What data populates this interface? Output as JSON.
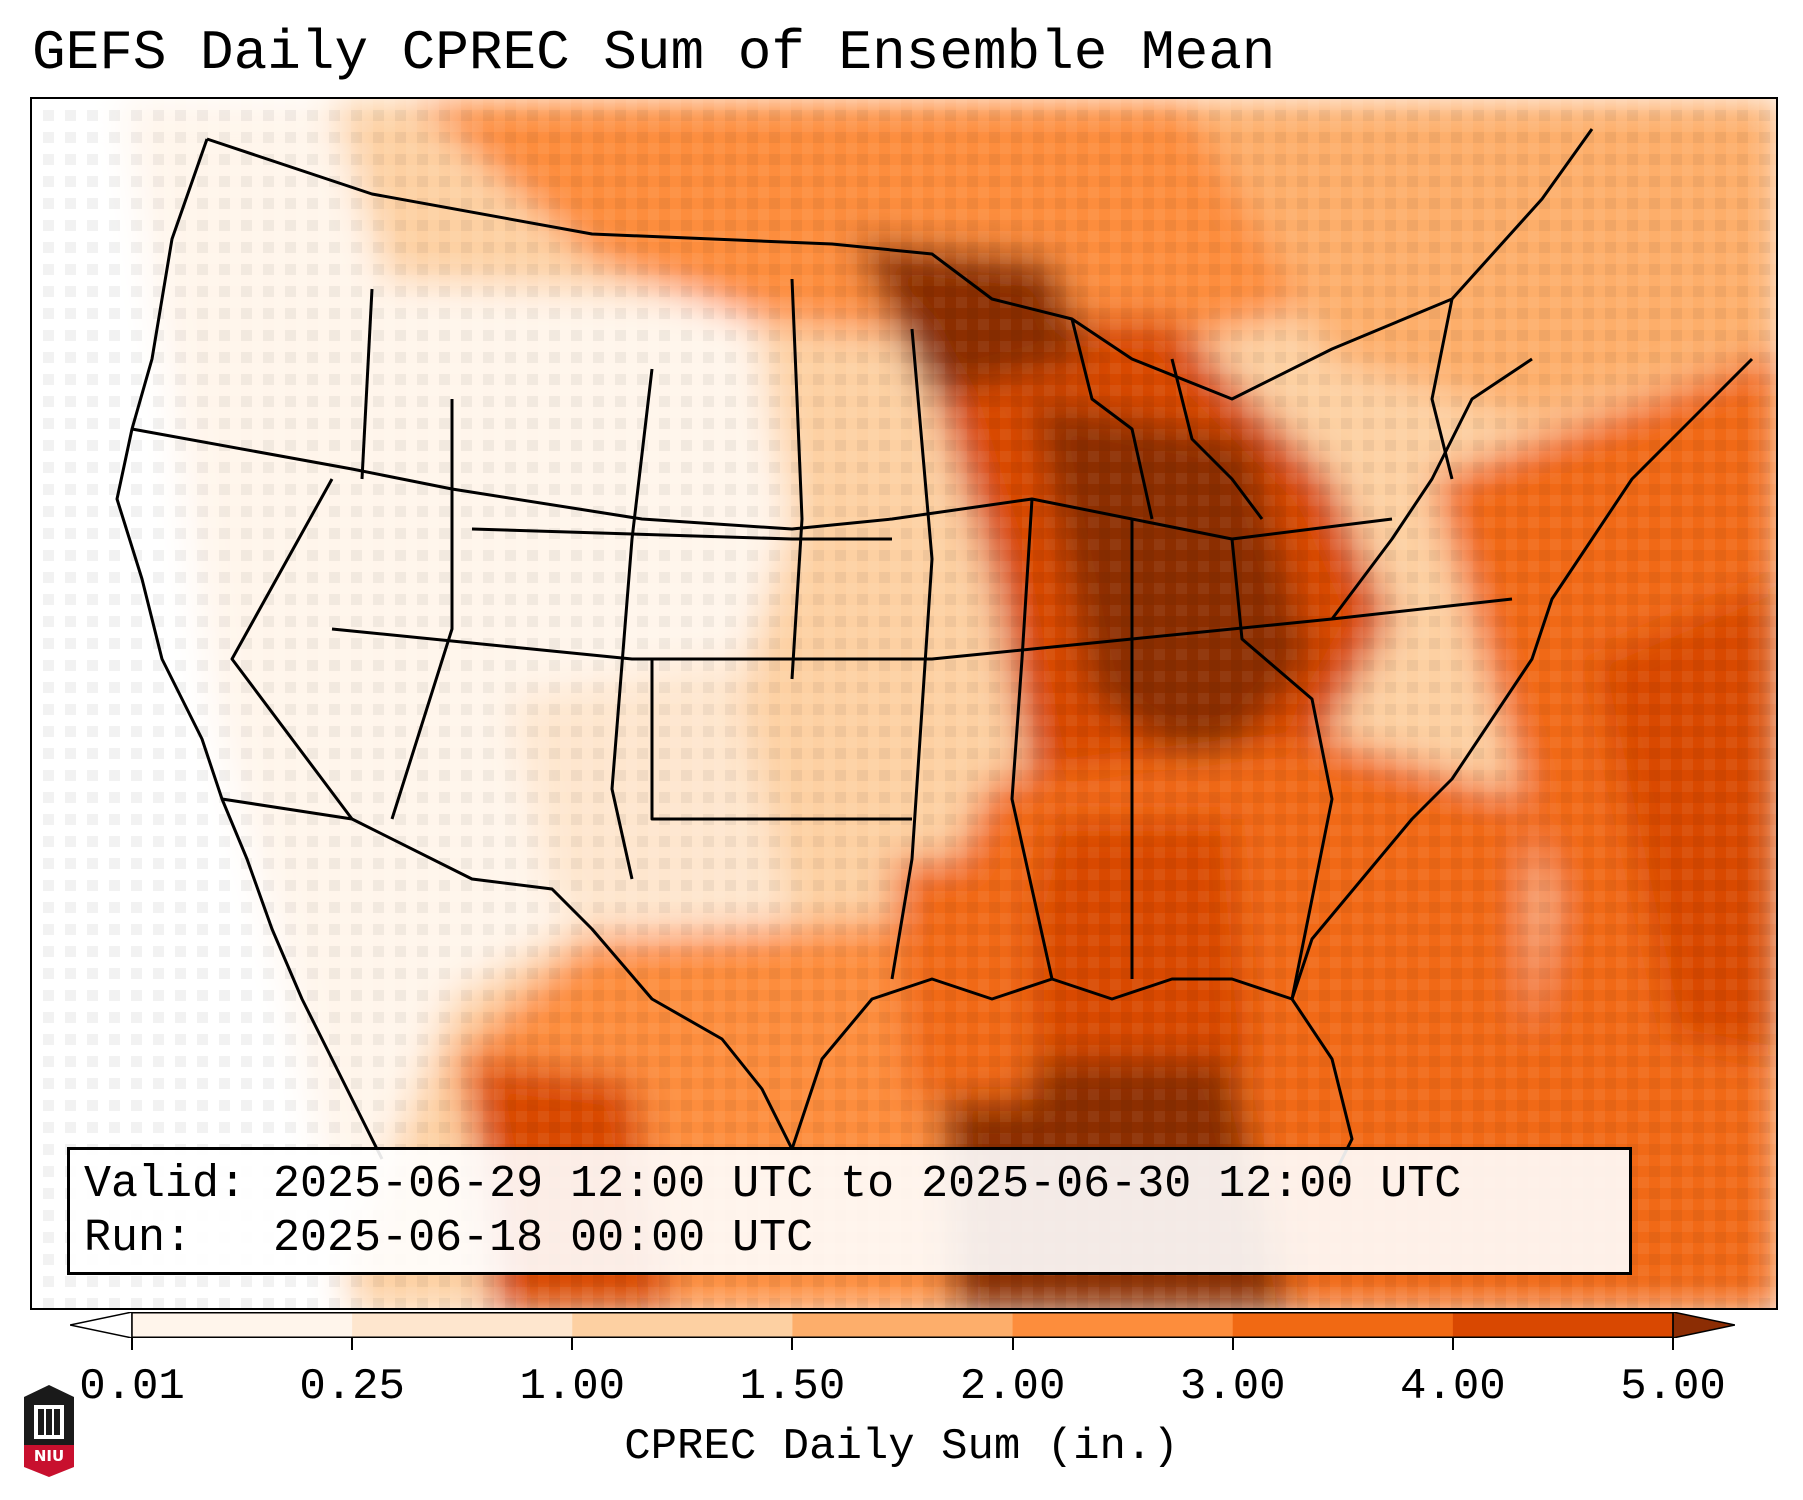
{
  "title": "GEFS Daily CPREC Sum of Ensemble Mean",
  "info": {
    "valid_label": "Valid:",
    "valid_value": "2025-06-29 12:00 UTC to 2025-06-30 12:00 UTC",
    "run_label": "Run:",
    "run_value": "2025-06-18 00:00 UTC"
  },
  "colorbar": {
    "label": "CPREC Daily Sum (in.)",
    "ticks": [
      "0.01",
      "0.25",
      "1.00",
      "1.50",
      "2.00",
      "3.00",
      "4.00",
      "5.00"
    ],
    "colors": {
      "under": "#ffffff",
      "bins": [
        "#fff5eb",
        "#fee6ce",
        "#fdd0a2",
        "#fdae6b",
        "#fd8d3c",
        "#f16913",
        "#d94801"
      ],
      "over": "#8c2d04"
    }
  },
  "logo": {
    "text": "NIU",
    "colors": {
      "top": "#1a1a1a",
      "bottom": "#c8102e"
    }
  }
}
